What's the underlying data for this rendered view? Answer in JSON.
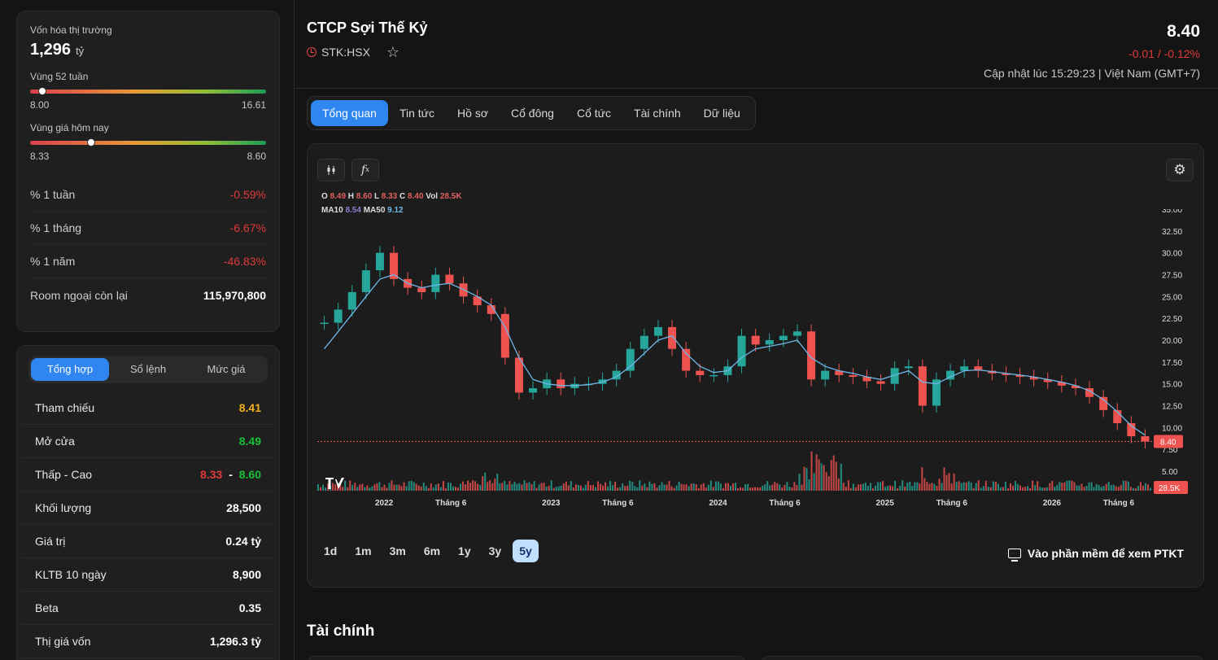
{
  "summary": {
    "market_cap_label": "Vốn hóa thị trường",
    "market_cap_value": "1,296",
    "market_cap_unit": "tỷ",
    "range52_label": "Vùng 52 tuần",
    "range52_low": "8.00",
    "range52_high": "16.61",
    "range52_position": 0.05,
    "today_label": "Vùng giá hôm nay",
    "today_low": "8.33",
    "today_high": "8.60",
    "today_position": 0.26,
    "stats": [
      {
        "label": "% 1 tuần",
        "value": "-0.59%"
      },
      {
        "label": "% 1 tháng",
        "value": "-6.67%"
      },
      {
        "label": "% 1 năm",
        "value": "-46.83%"
      },
      {
        "label": "Room ngoại còn lại",
        "value": "115,970,800"
      }
    ]
  },
  "trading": {
    "tabs": [
      "Tổng hợp",
      "Sổ lệnh",
      "Mức giá"
    ],
    "rows": [
      {
        "label": "Tham chiếu",
        "value": "8.41"
      },
      {
        "label": "Mở cửa",
        "value": "8.49"
      },
      {
        "label": "Thấp - Cao",
        "low": "8.33",
        "sep": "-",
        "high": "8.60"
      },
      {
        "label": "Khối lượng",
        "value": "28,500"
      },
      {
        "label": "Giá trị",
        "value": "0.24 tỷ"
      },
      {
        "label": "KLTB 10 ngày",
        "value": "8,900"
      },
      {
        "label": "Beta",
        "value": "0.35"
      },
      {
        "label": "Thị giá vốn",
        "value": "1,296.3 tỷ"
      }
    ]
  },
  "header": {
    "company": "CTCP Sợi Thế Kỷ",
    "ticker": "STK:HSX",
    "price": "8.40",
    "change": "-0.01 / -0.12%",
    "updated": "Cập nhật lúc 15:29:23 | Việt Nam (GMT+7)"
  },
  "nav": {
    "tabs": [
      "Tổng quan",
      "Tin tức",
      "Hồ sơ",
      "Cổ đông",
      "Cổ tức",
      "Tài chính",
      "Dữ liệu"
    ]
  },
  "chart": {
    "ohlc_legend": {
      "o": "8.49",
      "h": "8.60",
      "l": "8.33",
      "c": "8.40",
      "vol": "28.5K"
    },
    "ma_legend": {
      "ma10": "8.54",
      "ma50": "9.12"
    },
    "last_price_tag": "8.40",
    "vol_tag": "28.5K",
    "ranges": [
      "1d",
      "1m",
      "3m",
      "6m",
      "1y",
      "3y",
      "5y"
    ],
    "active_range": "5y",
    "ptkt_label": "Vào phần mềm để xem PTKT",
    "colors": {
      "up": "#26a69a",
      "down": "#ef5350",
      "ma": "#6fb7e8",
      "accent": "#2f86f0"
    }
  },
  "section": {
    "title": "Tài chính"
  },
  "chart_data": {
    "type": "line",
    "title": "",
    "xlabel": "",
    "ylabel": "",
    "ylim": [
      5,
      35
    ],
    "yticks": [
      "35.00",
      "32.50",
      "30.00",
      "27.50",
      "25.00",
      "22.50",
      "20.00",
      "17.50",
      "15.00",
      "12.50",
      "10.00",
      "7.50",
      "5.00"
    ],
    "xticks": [
      "2022",
      "Tháng 6",
      "2023",
      "Tháng 6",
      "2024",
      "Tháng 6",
      "2025",
      "Tháng 6",
      "2026",
      "Tháng 6"
    ],
    "x": [
      "2021-09",
      "2021-10",
      "2021-11",
      "2021-12",
      "2022-01",
      "2022-02",
      "2022-03",
      "2022-04",
      "2022-05",
      "2022-06",
      "2022-07",
      "2022-08",
      "2022-09",
      "2022-10",
      "2022-11",
      "2022-12",
      "2023-01",
      "2023-02",
      "2023-03",
      "2023-04",
      "2023-05",
      "2023-06",
      "2023-07",
      "2023-08",
      "2023-09",
      "2023-10",
      "2023-11",
      "2023-12",
      "2024-01",
      "2024-02",
      "2024-03",
      "2024-04",
      "2024-05",
      "2024-06",
      "2024-07",
      "2024-08",
      "2024-09",
      "2024-10",
      "2024-11",
      "2024-12",
      "2025-01",
      "2025-02",
      "2025-03",
      "2025-04",
      "2025-05",
      "2025-06",
      "2025-07",
      "2025-08",
      "2025-09",
      "2025-10",
      "2025-11",
      "2025-12",
      "2026-01",
      "2026-02",
      "2026-03",
      "2026-04",
      "2026-05",
      "2026-06",
      "2026-07",
      "2026-08"
    ],
    "series": [
      {
        "name": "Giá",
        "values": [
          22.0,
          23.5,
          25.5,
          28.0,
          30.0,
          27.0,
          26.0,
          25.5,
          27.5,
          26.5,
          25.0,
          24.0,
          23.0,
          18.0,
          14.0,
          14.5,
          15.5,
          14.5,
          15.0,
          15.0,
          15.5,
          16.5,
          19.0,
          20.5,
          21.5,
          19.0,
          16.5,
          16.0,
          16.0,
          17.0,
          20.5,
          19.5,
          20.0,
          20.5,
          21.0,
          15.5,
          16.5,
          16.0,
          15.8,
          15.3,
          15.0,
          16.8,
          17.0,
          12.5,
          15.5,
          16.5,
          17.0,
          16.5,
          16.2,
          16.0,
          15.8,
          15.5,
          15.2,
          14.8,
          14.5,
          13.5,
          12.0,
          10.5,
          9.0,
          8.4
        ]
      },
      {
        "name": "MA50",
        "values": [
          19.0,
          21.0,
          23.0,
          25.0,
          27.0,
          27.5,
          26.5,
          26.0,
          26.3,
          26.5,
          25.8,
          25.0,
          24.0,
          21.5,
          18.0,
          15.5,
          15.0,
          14.8,
          14.8,
          14.9,
          15.2,
          15.8,
          17.0,
          18.5,
          20.0,
          20.5,
          18.5,
          17.0,
          16.3,
          16.5,
          18.0,
          19.0,
          19.3,
          19.6,
          20.0,
          18.0,
          17.0,
          16.5,
          16.2,
          15.8,
          15.5,
          16.0,
          16.5,
          15.2,
          15.0,
          15.8,
          16.5,
          16.6,
          16.4,
          16.2,
          16.0,
          15.8,
          15.5,
          15.2,
          14.8,
          14.2,
          13.2,
          11.8,
          10.2,
          9.12
        ]
      }
    ]
  }
}
